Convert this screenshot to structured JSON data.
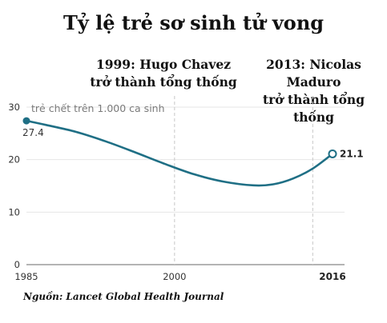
{
  "title": "Tỷ lệ trẻ sơ sinh tử vong",
  "annotations": [
    {
      "lines": [
        "1999: Hugo Chavez",
        "trở thành tổng thống"
      ],
      "year": 2000
    },
    {
      "lines": [
        "2013: Nicolas Maduro",
        "trở thành tổng thống"
      ],
      "year": 2014
    }
  ],
  "source": "Nguồn: Lancet Global Health Journal",
  "chart_data": {
    "type": "line",
    "title": "Tỷ lệ trẻ sơ sinh tử vong",
    "ylabel": "trẻ chết trên 1.000 ca sinh",
    "xlabel": "",
    "xlim": [
      1985,
      2016
    ],
    "ylim": [
      0,
      30
    ],
    "yticks": [
      0,
      10,
      20,
      30
    ],
    "xticks": [
      1985,
      2000,
      2016
    ],
    "grid": true,
    "colors": {
      "line": "#1f6f85",
      "grid": "#e6e6e6",
      "marker": "#1f6f85"
    },
    "series": [
      {
        "x": [
          1985,
          1987,
          1990,
          1993,
          1996,
          1999,
          2002,
          2005,
          2008,
          2010,
          2012,
          2014,
          2016
        ],
        "values": [
          27.4,
          26.6,
          25.3,
          23.5,
          21.4,
          19.2,
          17.2,
          15.8,
          15.1,
          15.3,
          16.4,
          18.3,
          21.1
        ]
      }
    ],
    "value_labels": [
      {
        "x": 1985,
        "text": "27.4"
      },
      {
        "x": 2016,
        "text": "21.1"
      }
    ]
  }
}
